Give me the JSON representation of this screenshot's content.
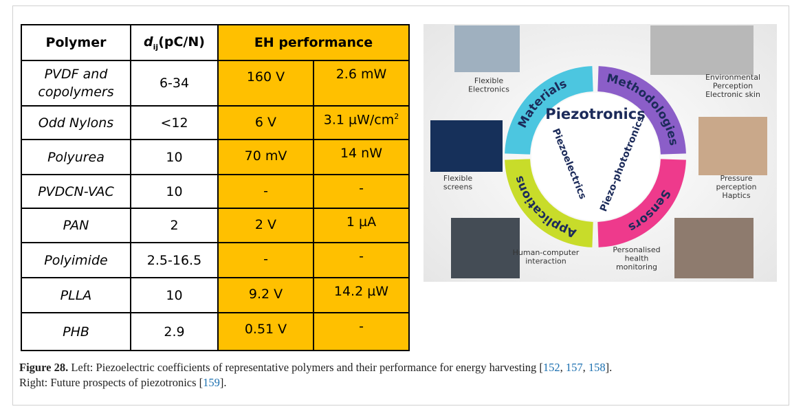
{
  "table": {
    "header": [
      "Polymer",
      {
        "d": "d",
        "sub": "ij",
        "unit": "(pC/N)"
      },
      "EH performance"
    ],
    "rows": [
      [
        "PVDF and copolymers",
        "6-34",
        "160 V",
        "2.6 mW"
      ],
      [
        "Odd Nylons",
        "<12",
        "6 V",
        {
          "text": "3.1 µW/cm",
          "sup": "2"
        }
      ],
      [
        "Polyurea",
        "10",
        "70 mV",
        "14 nW"
      ],
      [
        "PVDCN-VAC",
        "10",
        "-",
        "-"
      ],
      [
        "PAN",
        "2",
        "2 V",
        "1 µA"
      ],
      [
        "Polyimide",
        "2.5-16.5",
        "-",
        "-"
      ],
      [
        "PLLA",
        "10",
        "9.2 V",
        "14.2 µW"
      ],
      [
        "PHB",
        "2.9",
        "0.51 V",
        "-"
      ]
    ]
  },
  "diagram": {
    "center": "Piezotronics",
    "inner": [
      "Piezoelectrics",
      "Piezo-phototronics"
    ],
    "segments": [
      "Materials",
      "Methodologies",
      "Sensors",
      "Applications"
    ],
    "labels": [
      [
        "Flexible",
        "Electronics"
      ],
      [
        "Environmental",
        "Perception",
        "Electronic skin"
      ],
      [
        "Flexible",
        "screens"
      ],
      [
        "Pressure",
        "perception",
        "Haptics"
      ],
      [
        "Human-computer",
        "interaction"
      ],
      [
        "Personalised",
        "health",
        "monitoring"
      ]
    ]
  },
  "caption": {
    "label": "Figure 28.",
    "text": [
      " Left: Piezoelectric coefficients of representative polymers and their performance for energy harvesting [",
      "152",
      ", ",
      "157",
      ", ",
      "158",
      "].",
      "Right: Future prospects of piezotronics [",
      "159",
      "]."
    ]
  }
}
